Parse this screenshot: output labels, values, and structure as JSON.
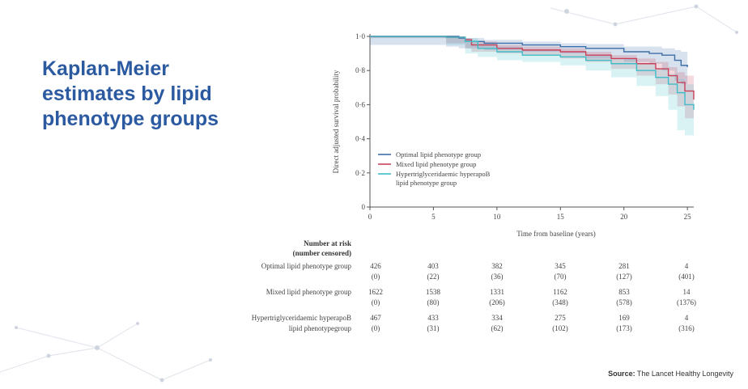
{
  "slide": {
    "title_lines": [
      "Kaplan-Meier",
      "estimates by lipid",
      "phenotype groups"
    ],
    "source_label": "Source:",
    "source_text": "The Lancet Healthy Longevity"
  },
  "chart_data": {
    "type": "line",
    "title": "",
    "xlabel": "Time from baseline (years)",
    "ylabel": "Direct adjusted survival probability",
    "xlim": [
      0,
      25.5
    ],
    "ylim": [
      0,
      1.0
    ],
    "x_ticks": [
      0,
      5,
      10,
      15,
      20,
      25
    ],
    "y_ticks": [
      0,
      0.2,
      0.4,
      0.6,
      0.8,
      1.0
    ],
    "y_tick_labels": [
      "0",
      "0·2",
      "0·4",
      "0·6",
      "0·8",
      "1·0"
    ],
    "legend_position": "bottom-left",
    "series": [
      {
        "name": "Optimal lipid phenotype group",
        "color": "#3d6ea8",
        "x": [
          0,
          6,
          7,
          7.5,
          9,
          12,
          15,
          17,
          20,
          22,
          23,
          24,
          24.5,
          25
        ],
        "y": [
          1.0,
          1.0,
          0.99,
          0.97,
          0.96,
          0.95,
          0.94,
          0.93,
          0.91,
          0.9,
          0.89,
          0.86,
          0.83,
          0.82
        ],
        "band_upper": [
          1.0,
          1.0,
          1.0,
          0.99,
          0.98,
          0.97,
          0.96,
          0.955,
          0.94,
          0.94,
          0.93,
          0.92,
          0.91,
          0.9
        ],
        "band_lower": [
          1.0,
          0.95,
          0.94,
          0.93,
          0.93,
          0.92,
          0.91,
          0.9,
          0.87,
          0.85,
          0.84,
          0.8,
          0.74,
          0.72
        ]
      },
      {
        "name": "Mixed lipid phenotype group",
        "color": "#c8415a",
        "x": [
          0,
          6,
          7.5,
          8,
          10,
          12,
          15,
          17,
          19,
          21,
          22.5,
          23.5,
          24.2,
          24.8,
          25.5
        ],
        "y": [
          1.0,
          0.995,
          0.98,
          0.95,
          0.93,
          0.92,
          0.91,
          0.89,
          0.87,
          0.84,
          0.81,
          0.77,
          0.73,
          0.68,
          0.63
        ],
        "band_upper": [
          1.0,
          1.0,
          0.99,
          0.97,
          0.95,
          0.94,
          0.93,
          0.91,
          0.89,
          0.87,
          0.85,
          0.82,
          0.79,
          0.77,
          0.75
        ],
        "band_lower": [
          1.0,
          0.99,
          0.96,
          0.93,
          0.91,
          0.9,
          0.89,
          0.87,
          0.85,
          0.81,
          0.77,
          0.72,
          0.66,
          0.59,
          0.52
        ]
      },
      {
        "name": "Hypertriglyceridaemic hyperapoB lipid phenotype group",
        "name_lines": [
          "Hypertriglyceridaemic hyperapoB",
          "lipid phenotype group"
        ],
        "color": "#3fbcc8",
        "x": [
          0,
          6,
          7.5,
          8.5,
          10,
          12,
          15,
          17,
          19,
          21,
          22.5,
          23.5,
          24.2,
          24.8,
          25.5
        ],
        "y": [
          1.0,
          0.995,
          0.97,
          0.93,
          0.91,
          0.89,
          0.88,
          0.86,
          0.84,
          0.8,
          0.76,
          0.72,
          0.67,
          0.6,
          0.57
        ],
        "band_upper": [
          1.0,
          1.0,
          0.99,
          0.96,
          0.94,
          0.92,
          0.91,
          0.89,
          0.87,
          0.84,
          0.81,
          0.78,
          0.75,
          0.72,
          0.7
        ],
        "band_lower": [
          1.0,
          0.99,
          0.95,
          0.9,
          0.88,
          0.86,
          0.85,
          0.83,
          0.8,
          0.76,
          0.71,
          0.65,
          0.57,
          0.45,
          0.42
        ]
      }
    ]
  },
  "risk_table": {
    "heading_lines": [
      "Number at risk",
      "(number censored)"
    ],
    "groups": [
      {
        "label_lines": [
          "Optimal lipid phenotype group"
        ],
        "at_risk": [
          "426",
          "403",
          "382",
          "345",
          "281",
          "4"
        ],
        "censored": [
          "(0)",
          "(22)",
          "(36)",
          "(70)",
          "(127)",
          "(401)"
        ]
      },
      {
        "label_lines": [
          "Mixed lipid phenotype group"
        ],
        "at_risk": [
          "1622",
          "1538",
          "1331",
          "1162",
          "853",
          "14"
        ],
        "censored": [
          "(0)",
          "(80)",
          "(206)",
          "(348)",
          "(578)",
          "(1376)"
        ]
      },
      {
        "label_lines": [
          "Hypertriglyceridaemic hyperapoB",
          "lipid phenotypegroup"
        ],
        "at_risk": [
          "467",
          "433",
          "334",
          "275",
          "169",
          "4"
        ],
        "censored": [
          "(0)",
          "(31)",
          "(62)",
          "(102)",
          "(173)",
          "(316)"
        ]
      }
    ]
  }
}
